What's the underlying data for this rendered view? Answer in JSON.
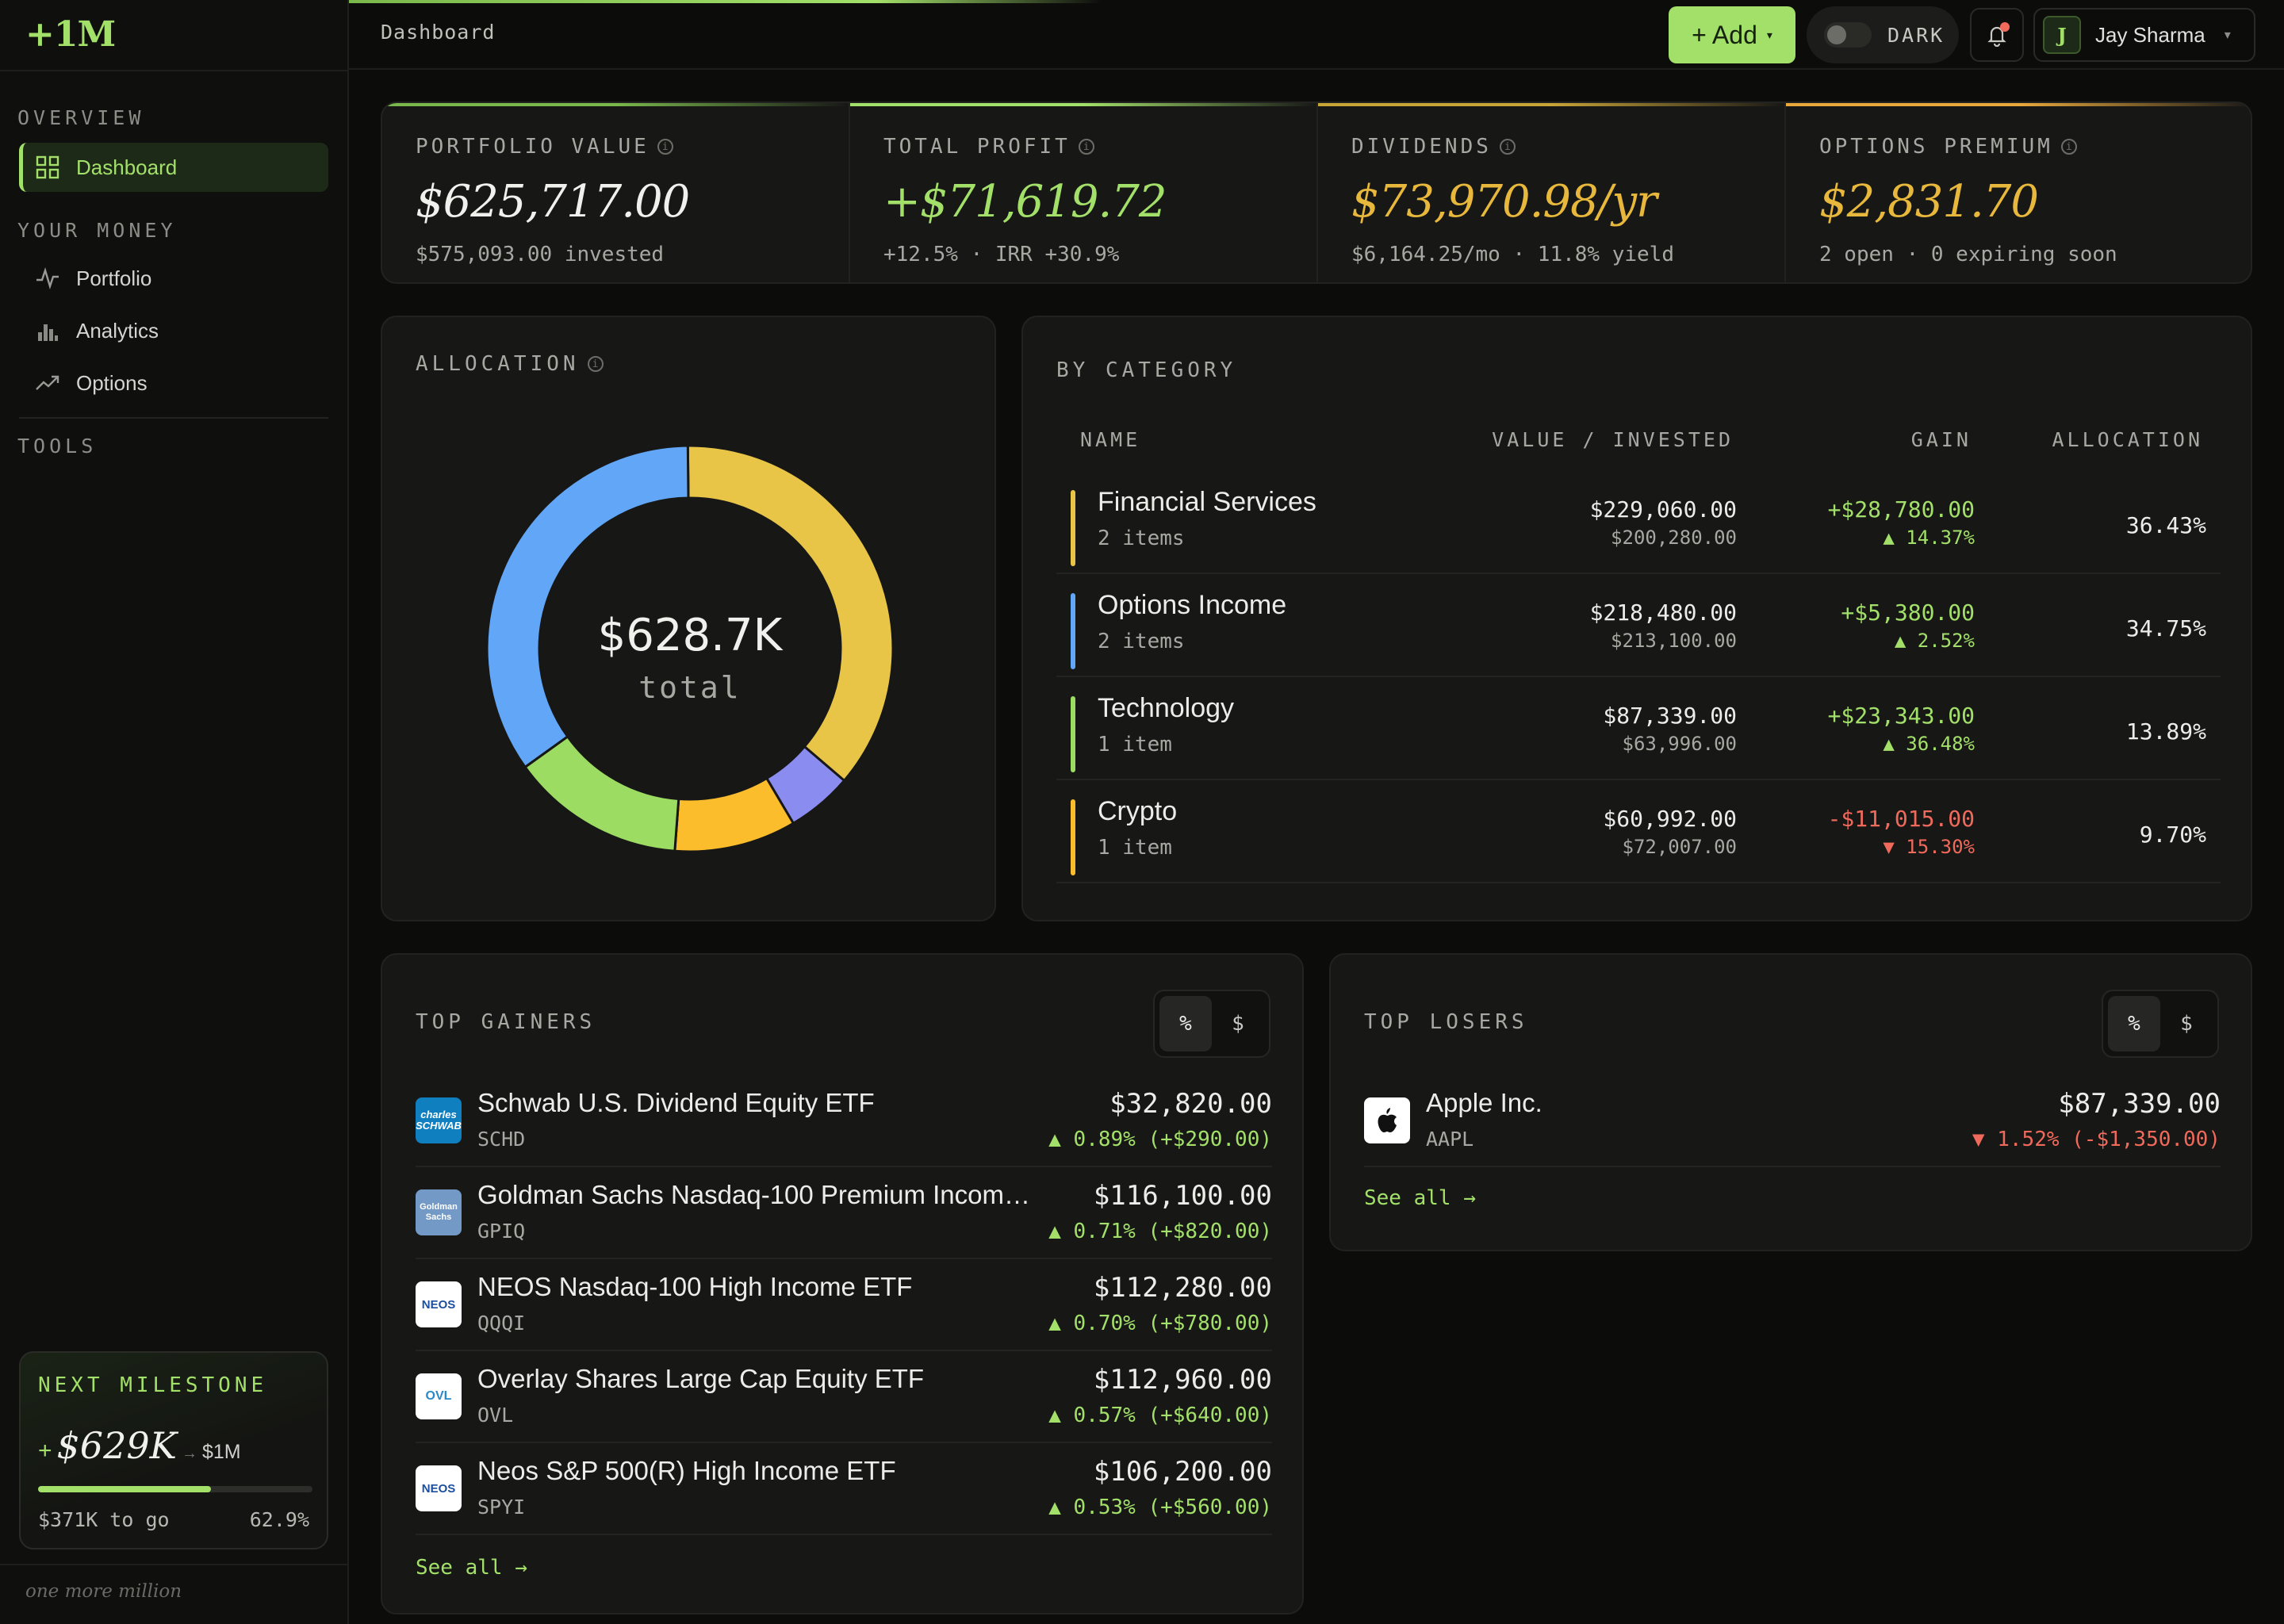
{
  "app": {
    "logo": "+1M",
    "tagline": "one more million"
  },
  "sidebar": {
    "sections": [
      {
        "label": "OVERVIEW",
        "items": [
          {
            "label": "Dashboard",
            "icon": "grid-icon",
            "active": true
          }
        ]
      },
      {
        "label": "YOUR MONEY",
        "items": [
          {
            "label": "Portfolio",
            "icon": "pulse-icon"
          },
          {
            "label": "Analytics",
            "icon": "bar-chart-icon"
          },
          {
            "label": "Options",
            "icon": "trend-up-icon"
          }
        ]
      },
      {
        "label": "TOOLS",
        "items": []
      }
    ],
    "milestone": {
      "title": "NEXT MILESTONE",
      "plus": "+",
      "amount": "$629K",
      "arrow": "→",
      "target": "$1M",
      "progress_pct": 62.9,
      "to_go": "$371K to go",
      "pct_label": "62.9%"
    }
  },
  "topbar": {
    "breadcrumb": "Dashboard",
    "add_label": "+ Add",
    "add_caret": "▾",
    "theme_label": "DARK",
    "user_initial": "J",
    "user_name": "Jay Sharma",
    "user_caret": "▾"
  },
  "stats": [
    {
      "label": "PORTFOLIO VALUE",
      "value": "$625,717.00",
      "sub": "$575,093.00 invested",
      "color": "#f0f0ec",
      "accent": "#7ab84c"
    },
    {
      "label": "TOTAL PROFIT",
      "value": "+$71,619.72",
      "sub": "+12.5% · IRR +30.9%",
      "color": "#a3e06a",
      "accent": "#a3e06a"
    },
    {
      "label": "DIVIDENDS",
      "value": "$73,970.98/yr",
      "sub": "$6,164.25/mo · 11.8% yield",
      "color": "#e8b83c",
      "accent": "#c9a437"
    },
    {
      "label": "OPTIONS PREMIUM",
      "value": "$2,831.70",
      "sub": "2 open · 0 expiring soon",
      "color": "#e8b83c",
      "accent": "#e8a83c"
    }
  ],
  "allocation": {
    "title": "ALLOCATION",
    "center_value": "$628.7K",
    "center_label": "total"
  },
  "chart_data": {
    "type": "pie",
    "categories": [
      "Financial Services",
      "Other (purple)",
      "Crypto",
      "Technology",
      "Options Income"
    ],
    "values": [
      36.43,
      5.23,
      9.7,
      13.89,
      34.75
    ],
    "colors": [
      "#e8c547",
      "#8b8cf0",
      "#fbbd2b",
      "#9ddc62",
      "#62a6f7"
    ],
    "donut": true
  },
  "by_category": {
    "title": "BY CATEGORY",
    "headers": {
      "name": "NAME",
      "value": "VALUE / INVESTED",
      "gain": "GAIN",
      "alloc": "ALLOCATION"
    },
    "rows": [
      {
        "name": "Financial Services",
        "items": "2 items",
        "value": "$229,060.00",
        "invested": "$200,280.00",
        "gain": "+$28,780.00",
        "gain_pct": "▲ 14.37%",
        "alloc": "36.43%",
        "color": "#e8c547",
        "positive": true
      },
      {
        "name": "Options Income",
        "items": "2 items",
        "value": "$218,480.00",
        "invested": "$213,100.00",
        "gain": "+$5,380.00",
        "gain_pct": "▲ 2.52%",
        "alloc": "34.75%",
        "color": "#62a6f7",
        "positive": true
      },
      {
        "name": "Technology",
        "items": "1 item",
        "value": "$87,339.00",
        "invested": "$63,996.00",
        "gain": "+$23,343.00",
        "gain_pct": "▲ 36.48%",
        "alloc": "13.89%",
        "color": "#9ddc62",
        "positive": true
      },
      {
        "name": "Crypto",
        "items": "1 item",
        "value": "$60,992.00",
        "invested": "$72,007.00",
        "gain": "-$11,015.00",
        "gain_pct": "▼ 15.30%",
        "alloc": "9.70%",
        "color": "#fbbd2b",
        "positive": false
      }
    ]
  },
  "top_gainers": {
    "title": "TOP GAINERS",
    "toggle": [
      "%",
      "$"
    ],
    "see_all": "See all →",
    "items": [
      {
        "name": "Schwab U.S. Dividend Equity ETF",
        "ticker": "SCHD",
        "value": "$32,820.00",
        "change": "▲ 0.89% (+$290.00)",
        "logo_text": "charles SCHWAB",
        "logo_bg": "#0f7fc0",
        "logo_fg": "#ffffff"
      },
      {
        "name": "Goldman Sachs Nasdaq-100 Premium Incom…",
        "ticker": "GPIQ",
        "value": "$116,100.00",
        "change": "▲ 0.71% (+$820.00)",
        "logo_text": "Goldman Sachs",
        "logo_bg": "#7399c6",
        "logo_fg": "#ffffff"
      },
      {
        "name": "NEOS Nasdaq-100 High Income ETF",
        "ticker": "QQQI",
        "value": "$112,280.00",
        "change": "▲ 0.70% (+$780.00)",
        "logo_text": "NEOS",
        "logo_bg": "#ffffff",
        "logo_fg": "#1d4fa0"
      },
      {
        "name": "Overlay Shares Large Cap Equity ETF",
        "ticker": "OVL",
        "value": "$112,960.00",
        "change": "▲ 0.57% (+$640.00)",
        "logo_text": "OVL",
        "logo_bg": "#ffffff",
        "logo_fg": "#2a8ac8"
      },
      {
        "name": "Neos S&P 500(R) High Income ETF",
        "ticker": "SPYI",
        "value": "$106,200.00",
        "change": "▲ 0.53% (+$560.00)",
        "logo_text": "NEOS",
        "logo_bg": "#ffffff",
        "logo_fg": "#1d4fa0"
      }
    ]
  },
  "top_losers": {
    "title": "TOP LOSERS",
    "toggle": [
      "%",
      "$"
    ],
    "see_all": "See all →",
    "items": [
      {
        "name": "Apple Inc.",
        "ticker": "AAPL",
        "value": "$87,339.00",
        "change": "▼ 1.52% (-$1,350.00)",
        "logo_bg": "#ffffff"
      }
    ]
  }
}
